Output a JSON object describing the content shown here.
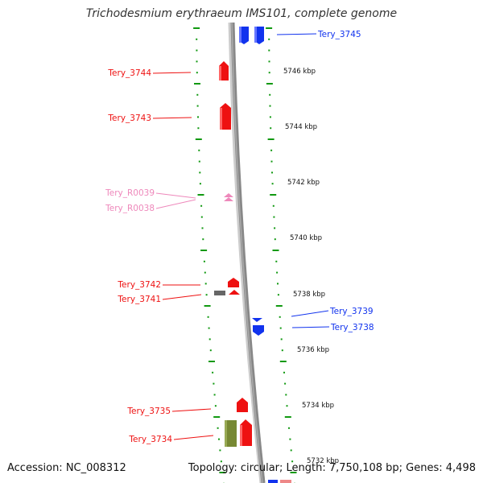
{
  "title": "Trichodesmium erythraeum IMS101, complete genome",
  "footer": {
    "accession": "Accession: NC_008312",
    "summary": "Topology: circular; Length: 7,750,108 bp; Genes: 4,498"
  },
  "colors": {
    "forward_gene": "#ee1111",
    "reverse_gene": "#1133ee",
    "rna": "#ee88bb",
    "other": "#778833",
    "backbone": "#888888",
    "ticks": "#119911"
  },
  "ticks": [
    {
      "label": "5746 kbp"
    },
    {
      "label": "5744 kbp"
    },
    {
      "label": "5742 kbp"
    },
    {
      "label": "5740 kbp"
    },
    {
      "label": "5738 kbp"
    },
    {
      "label": "5736 kbp"
    },
    {
      "label": "5734 kbp"
    },
    {
      "label": "5732 kbp"
    }
  ],
  "genes": [
    {
      "name": "Tery_3745",
      "kind": "reverse"
    },
    {
      "name": "Tery_3744",
      "kind": "forward"
    },
    {
      "name": "Tery_3743",
      "kind": "forward"
    },
    {
      "name": "Tery_R0039",
      "kind": "rna"
    },
    {
      "name": "Tery_R0038",
      "kind": "rna"
    },
    {
      "name": "Tery_3742",
      "kind": "forward"
    },
    {
      "name": "Tery_3741",
      "kind": "forward"
    },
    {
      "name": "Tery_3739",
      "kind": "reverse"
    },
    {
      "name": "Tery_3738",
      "kind": "reverse"
    },
    {
      "name": "Tery_3735",
      "kind": "forward"
    },
    {
      "name": "Tery_3734",
      "kind": "forward"
    }
  ]
}
